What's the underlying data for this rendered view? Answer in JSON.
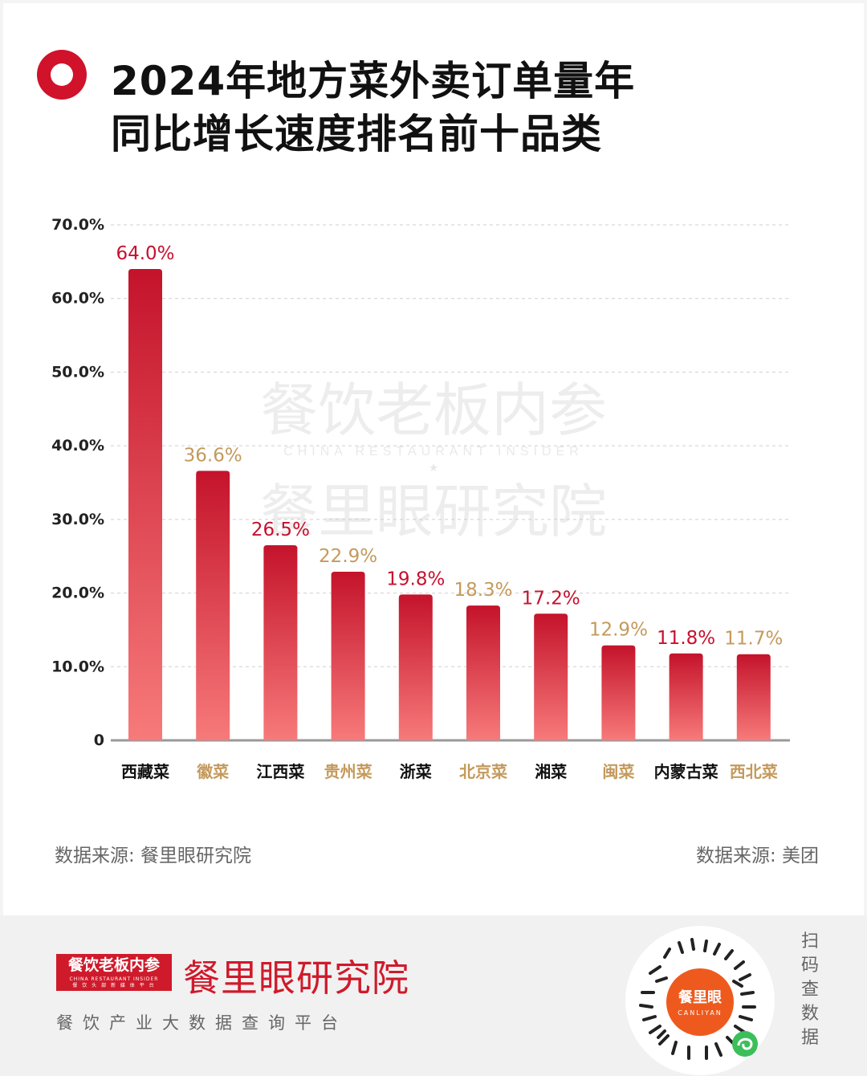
{
  "title_lines": [
    "2024年地方菜外卖订单量年",
    "同比增长速度排名前十品类"
  ],
  "watermark": {
    "line1": "餐饮老板内参",
    "line2": "CHINA RESTAURANT INSIDER",
    "line3": "餐里眼研究院"
  },
  "source_left": "数据来源: 餐里眼研究院",
  "source_right": "数据来源: 美团",
  "footer": {
    "logo_cn": "餐饮老板内参",
    "logo_en": "CHINA RESTAURANT INSIDER",
    "logo_sub": "餐 饮 头 部 新 媒 体 平 台",
    "brand": "餐里眼研究院",
    "tagline": "餐饮产业大数据查询平台",
    "qr_center": "餐里眼",
    "qr_center_en": "CANLIYAN",
    "scan_text": "扫码查数据"
  },
  "chart_data": {
    "type": "bar",
    "categories": [
      "西藏菜",
      "徽菜",
      "江西菜",
      "贵州菜",
      "浙菜",
      "北京菜",
      "湘菜",
      "闽菜",
      "内蒙古菜",
      "西北菜"
    ],
    "values": [
      64.0,
      36.6,
      26.5,
      22.9,
      19.8,
      18.3,
      17.2,
      12.9,
      11.8,
      11.7
    ],
    "value_labels": [
      "64.0%",
      "36.6%",
      "26.5%",
      "22.9%",
      "19.8%",
      "18.3%",
      "17.2%",
      "12.9%",
      "11.8%",
      "11.7%"
    ],
    "ylim": [
      0,
      70
    ],
    "yticks": [
      0,
      10,
      20,
      30,
      40,
      50,
      60,
      70
    ],
    "ytick_labels": [
      "0",
      "10.0%",
      "20.0%",
      "30.0%",
      "40.0%",
      "50.0%",
      "60.0%",
      "70.0%"
    ],
    "grid": true,
    "legend": "none",
    "colors": {
      "bar_top": "#c4132b",
      "bar_bottom": "#f77a7a",
      "label_red": "#c8102e",
      "label_gold": "#c49a5c",
      "category_dark": "#111111",
      "category_gold": "#c49a5c"
    }
  }
}
